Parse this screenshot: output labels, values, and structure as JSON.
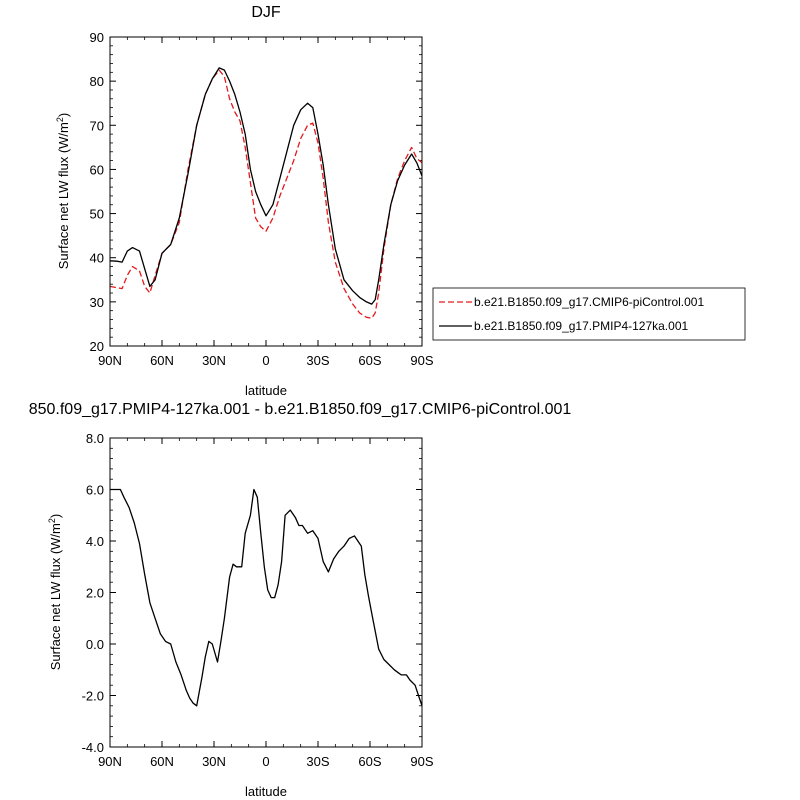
{
  "chart_data": [
    {
      "type": "line",
      "title": "DJF",
      "xlabel": "latitude",
      "ylabel": "Surface net LW flux (W/m",
      "ylabel_sup": "2",
      "ylabel_close": ")",
      "xlim": [
        90,
        -90
      ],
      "ylim": [
        20,
        90
      ],
      "xticks": [
        90,
        60,
        30,
        0,
        -30,
        -60,
        -90
      ],
      "xtick_labels": [
        "90N",
        "60N",
        "30N",
        "0",
        "30S",
        "60S",
        "90S"
      ],
      "yticks": [
        20,
        30,
        40,
        50,
        60,
        70,
        80,
        90
      ],
      "ytick_labels": [
        "20",
        "30",
        "40",
        "50",
        "60",
        "70",
        "80",
        "90"
      ],
      "grid": false,
      "legend_position": "outside-right",
      "series": [
        {
          "name": "b.e21.B1850.f09_g17.CMIP6-piControl.001",
          "color": "#e31a1c",
          "dash": "dashed",
          "x": [
            90,
            86,
            83,
            80,
            77,
            73,
            70,
            67,
            64,
            60,
            55,
            50,
            45,
            40,
            35,
            31,
            27,
            24,
            21,
            18,
            15,
            12,
            9,
            6,
            3,
            0,
            -4,
            -8,
            -12,
            -16,
            -20,
            -24,
            -27,
            -30,
            -33,
            -36,
            -40,
            -45,
            -50,
            -54,
            -58,
            -61,
            -63,
            -65,
            -68,
            -72,
            -76,
            -80,
            -84,
            -87,
            -90
          ],
          "y": [
            33.5,
            33.2,
            33,
            36,
            38,
            37,
            33.5,
            32,
            36,
            41,
            43,
            48,
            60,
            70,
            77,
            80.5,
            82.5,
            81,
            76,
            73,
            71,
            65,
            57,
            49,
            47,
            46,
            49,
            54,
            58,
            62,
            67,
            70,
            70.5,
            66,
            58,
            48,
            39,
            33,
            29.5,
            27.5,
            26.5,
            26.3,
            27.5,
            32,
            42,
            52,
            58,
            62,
            65,
            62.5,
            61.5
          ]
        },
        {
          "name": "b.e21.B1850.f09_g17.PMIP4-127ka.001",
          "color": "#000000",
          "dash": "solid",
          "x": [
            90,
            86,
            83,
            80,
            77,
            73,
            70,
            67,
            64,
            60,
            55,
            50,
            45,
            40,
            35,
            31,
            27,
            24,
            21,
            18,
            15,
            12,
            9,
            6,
            3,
            0,
            -4,
            -8,
            -12,
            -16,
            -20,
            -24,
            -27,
            -30,
            -33,
            -36,
            -40,
            -45,
            -50,
            -54,
            -58,
            -61,
            -63,
            -65,
            -68,
            -72,
            -76,
            -80,
            -84,
            -87,
            -90
          ],
          "y": [
            39.3,
            39.2,
            39,
            41.5,
            42.3,
            41.5,
            37.5,
            33.5,
            35,
            41,
            43,
            49,
            59,
            70,
            77,
            80.5,
            83,
            82.5,
            80,
            77,
            73,
            68,
            60,
            55,
            52,
            49.5,
            52,
            58,
            64,
            70,
            73.5,
            75,
            74,
            68,
            61,
            52,
            42,
            35,
            32.5,
            31,
            30,
            29.5,
            30.5,
            35,
            43,
            52,
            57.5,
            61,
            63.5,
            61.5,
            58.5
          ]
        }
      ]
    },
    {
      "type": "line",
      "title": "850.f09_g17.PMIP4-127ka.001 - b.e21.B1850.f09_g17.CMIP6-piControl.001",
      "xlabel": "latitude",
      "ylabel": "Surface net LW flux (W/m",
      "ylabel_sup": "2",
      "ylabel_close": ")",
      "xlim": [
        90,
        -90
      ],
      "ylim": [
        -4,
        8
      ],
      "xticks": [
        90,
        60,
        30,
        0,
        -30,
        -60,
        -90
      ],
      "xtick_labels": [
        "90N",
        "60N",
        "30N",
        "0",
        "30S",
        "60S",
        "90S"
      ],
      "yticks": [
        -4,
        -2,
        0,
        2,
        4,
        6,
        8
      ],
      "ytick_labels": [
        "-4.0",
        "-2.0",
        "0.0",
        "2.0",
        "4.0",
        "6.0",
        "8.0"
      ],
      "grid": false,
      "series": [
        {
          "color": "#000000",
          "dash": "solid",
          "x": [
            90,
            87,
            84,
            82,
            79,
            76,
            73,
            70,
            67,
            64,
            61,
            58,
            55,
            52,
            49,
            46,
            44,
            42,
            40,
            37,
            35,
            33,
            31,
            28,
            26,
            24,
            21,
            19,
            17,
            14,
            12,
            9,
            7,
            5,
            3,
            1,
            -1,
            -3,
            -5,
            -7,
            -9,
            -11,
            -14,
            -17,
            -19,
            -21,
            -24,
            -27,
            -30,
            -33,
            -36,
            -39,
            -42,
            -45,
            -48,
            -51,
            -55,
            -57,
            -59,
            -61,
            -63,
            -65,
            -68,
            -71,
            -74,
            -76,
            -78,
            -81,
            -83,
            -86,
            -88,
            -90
          ],
          "y": [
            6,
            6,
            6,
            5.7,
            5.3,
            4.7,
            3.9,
            2.7,
            1.6,
            1.0,
            0.4,
            0.1,
            0,
            -0.7,
            -1.2,
            -1.8,
            -2.1,
            -2.3,
            -2.4,
            -1.3,
            -0.5,
            0.1,
            0,
            -0.7,
            0.1,
            1.0,
            2.6,
            3.1,
            3.0,
            3.0,
            4.3,
            5.0,
            6.0,
            5.7,
            4.3,
            3.0,
            2.1,
            1.8,
            1.8,
            2.3,
            3.2,
            5.0,
            5.2,
            4.9,
            4.6,
            4.6,
            4.3,
            4.4,
            4.1,
            3.2,
            2.8,
            3.3,
            3.6,
            3.8,
            4.1,
            4.2,
            3.8,
            2.7,
            1.9,
            1.2,
            0.5,
            -0.2,
            -0.6,
            -0.8,
            -1.0,
            -1.1,
            -1.2,
            -1.2,
            -1.4,
            -1.6,
            -2.0,
            -2.4
          ]
        }
      ]
    }
  ]
}
